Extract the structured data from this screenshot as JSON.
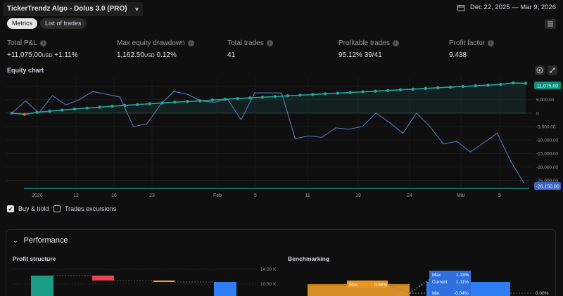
{
  "header": {
    "strategy_label": "TickerTrendz Algo - Dolus 3.0 (PRO)",
    "date_range": "Dec 22, 2025 — Mar 9, 2026"
  },
  "tabs": [
    {
      "label": "Metrics",
      "active": true
    },
    {
      "label": "List of trades",
      "active": false
    }
  ],
  "metrics": {
    "total_pnl": {
      "label": "Total P&L",
      "value": "+11,075.00",
      "unit": "USD",
      "pct": "+1.11%"
    },
    "max_dd": {
      "label": "Max equity drawdown",
      "value": "1,162.50",
      "unit": "USD",
      "pct": "0.12%"
    },
    "total_trades": {
      "label": "Total trades",
      "value": "41"
    },
    "profitable": {
      "label": "Profitable trades",
      "value": "95.12%",
      "ratio": "39/41"
    },
    "profit_factor": {
      "label": "Profit factor",
      "value": "9.438"
    }
  },
  "equity_chart": {
    "title": "Equity chart",
    "x_ticks": [
      "2026",
      "12",
      "16",
      "23",
      "Feb",
      "5",
      "11",
      "19",
      "24",
      "Mar",
      "5"
    ],
    "y_ticks": [
      "5,000.00",
      "0",
      "-5,000.00",
      "-10,000.00",
      "-15,000.00",
      "-20,000.00",
      "-25,000.00"
    ],
    "last_equity_label": "11,075.00",
    "last_buyhold_label": "-26,150.00",
    "colors": {
      "equity": "#26a69a",
      "buyhold": "#5b7fc7",
      "loss": "#ef5350"
    }
  },
  "chart_data": {
    "type": "line",
    "ylim": [
      -27500,
      12500
    ],
    "series": [
      {
        "name": "",
        "values": [
          0,
          -500,
          300,
          700,
          1100,
          1500,
          1850,
          2200,
          2550,
          2850,
          3150,
          3450,
          3750,
          4050,
          4300,
          4550,
          4850,
          5150,
          5400,
          5650,
          5900,
          6150,
          6400,
          6650,
          6900,
          7150,
          7400,
          7650,
          7900,
          8150,
          8400,
          8650,
          8900,
          9150,
          9400,
          9650,
          9900,
          10150,
          10400,
          10650,
          11200,
          11075
        ]
      },
      {
        "name": "",
        "values": [
          0,
          4500,
          0,
          6500,
          3000,
          5000,
          8000,
          7000,
          6000,
          -5000,
          -4000,
          3000,
          8000,
          7000,
          4500,
          4000,
          5000,
          -2500,
          7500,
          7500,
          7500,
          -9500,
          -8500,
          -9000,
          -5500,
          -6000,
          -5000,
          0,
          -3500,
          -7500,
          0,
          -5000,
          -11500,
          -10500,
          -14500,
          -11000,
          -7500,
          -18000,
          -26150
        ]
      }
    ]
  },
  "checks": {
    "buy_hold": {
      "label": "Buy & hold",
      "checked": true
    },
    "trades_exc": {
      "label": "Trades excursions",
      "checked": false
    }
  },
  "performance": {
    "title": "Performance",
    "profit_structure": {
      "title": "Profit structure",
      "ticks": [
        "14.00 K",
        "10.50 K"
      ]
    },
    "benchmarking": {
      "title": "Benchmarking",
      "max_label": "Max",
      "max_value": "0.88%",
      "tooltip": {
        "max_label": "Max",
        "max_value": "1.18%",
        "current_label": "Current",
        "current_value": "1.11%",
        "min_label": "Min",
        "min_value": "-0.04%"
      },
      "zero_tick": "0.00%"
    }
  }
}
